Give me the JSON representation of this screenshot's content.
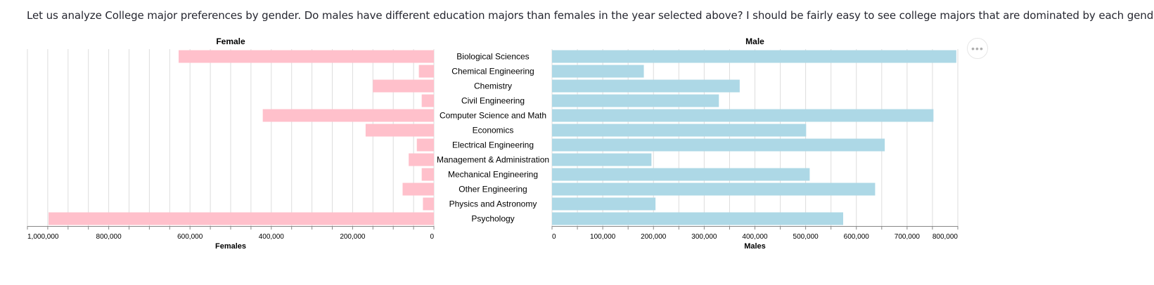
{
  "intro_text": "Let us analyze College major preferences by gender. Do males have different education majors than females in the year selected above? I should be fairly easy to see college majors that are dominated by each gender",
  "menu_icon": "more-horizontal-icon",
  "colors": {
    "female": "#ffc0cb",
    "male": "#add8e6",
    "grid": "#dddddd",
    "axis": "#888888",
    "text": "#000000"
  },
  "chart_data": {
    "type": "bar",
    "categories": [
      "Biological Sciences",
      "Chemical Engineering",
      "Chemistry",
      "Civil Engineering",
      "Computer Science and Math",
      "Economics",
      "Electrical Engineering",
      "Management & Administration",
      "Mechanical Engineering",
      "Other Engineering",
      "Physics and Astronomy",
      "Psychology"
    ],
    "female": {
      "title": "Female",
      "xlabel": "Females",
      "xlim": [
        0,
        1000000
      ],
      "ticks": [
        1000000,
        800000,
        600000,
        400000,
        200000,
        0
      ],
      "tick_labels": [
        "1,000,000",
        "800,000",
        "600,000",
        "400,000",
        "200,000",
        "0"
      ],
      "values": [
        628000,
        37000,
        150000,
        30000,
        421000,
        168000,
        42000,
        62000,
        30000,
        77000,
        27000,
        948000
      ]
    },
    "male": {
      "title": "Male",
      "xlabel": "Males",
      "xlim": [
        0,
        800000
      ],
      "ticks": [
        0,
        100000,
        200000,
        300000,
        400000,
        500000,
        600000,
        700000,
        800000
      ],
      "tick_labels": [
        "0",
        "100,000",
        "200,000",
        "300,000",
        "400,000",
        "500,000",
        "600,000",
        "700,000",
        "800,000"
      ],
      "values": [
        797000,
        181000,
        370000,
        329000,
        752000,
        501000,
        656000,
        196000,
        508000,
        637000,
        204000,
        574000
      ]
    }
  }
}
